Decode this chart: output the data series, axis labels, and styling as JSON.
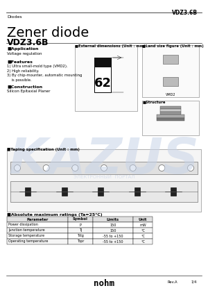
{
  "title_top_right": "VDZ3.6B",
  "category": "Diodes",
  "main_title": "Zener diode",
  "subtitle": "VDZ3.6B",
  "application_header": "Application",
  "application_text": "Voltage regulation",
  "features_header": "Features",
  "features": [
    "1) Ultra small-mold type (VMD2).",
    "2) High reliability.",
    "3) By chip-mounter, automatic mounting",
    "    is possible."
  ],
  "construction_header": "Construction",
  "construction_text": "Silicon Epitaxial Planer",
  "ext_dim_header": "External dimensions",
  "ext_dim_unit": "(Unit : mm)",
  "land_size_header": "Land size figure",
  "land_size_unit": "(Unit : mm)",
  "structure_header": "Structure",
  "taping_header": "Taping specification (Unit : mm)",
  "table_header": "Absolute maximum ratings (Ta=25°C)",
  "table_columns": [
    "Parameter",
    "Symbol",
    "Limits",
    "Unit"
  ],
  "table_rows": [
    [
      "Power dissipation",
      "P",
      "150",
      "mW"
    ],
    [
      "Junction temperature",
      "TJ",
      "150",
      "°C"
    ],
    [
      "Storage temperature",
      "Tstg",
      "-55 to +150",
      "°C"
    ],
    [
      "Operating temperature",
      "Topr",
      "-55 to +150",
      "°C"
    ]
  ],
  "footer_rev": "Rev.A",
  "footer_page": "1/4",
  "bg_color": "#ffffff",
  "text_color": "#000000",
  "kazus_color": "#c8d4e8",
  "component_number": "62",
  "vmd2_label": "VMD2"
}
